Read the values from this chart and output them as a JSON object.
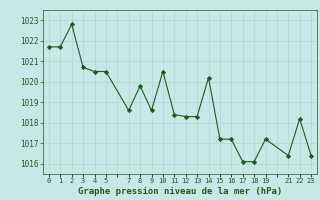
{
  "x": [
    0,
    1,
    2,
    3,
    4,
    5,
    7,
    8,
    9,
    10,
    11,
    12,
    13,
    14,
    15,
    16,
    17,
    18,
    19,
    21,
    22,
    23
  ],
  "y": [
    1021.7,
    1021.7,
    1022.8,
    1020.7,
    1020.5,
    1020.5,
    1018.6,
    1019.8,
    1018.6,
    1020.5,
    1018.4,
    1018.3,
    1018.3,
    1020.2,
    1017.2,
    1017.2,
    1016.1,
    1016.1,
    1017.2,
    1016.4,
    1018.2,
    1016.4
  ],
  "xlim": [
    -0.5,
    23.5
  ],
  "ylim": [
    1015.5,
    1023.5
  ],
  "yticks": [
    1016,
    1017,
    1018,
    1019,
    1020,
    1021,
    1022,
    1023
  ],
  "xtick_labels": [
    "0",
    "1",
    "2",
    "3",
    "4",
    "5",
    "",
    "7",
    "8",
    "9",
    "10",
    "11",
    "12",
    "13",
    "14",
    "15",
    "16",
    "17",
    "18",
    "19",
    "",
    "21",
    "22",
    "23"
  ],
  "xlabel": "Graphe pression niveau de la mer (hPa)",
  "line_color": "#1a5c1a",
  "marker_color": "#1a5c1a",
  "bg_color": "#c8e8e8",
  "grid_color": "#b0d4d4",
  "xlabel_color": "#1a5c1a"
}
